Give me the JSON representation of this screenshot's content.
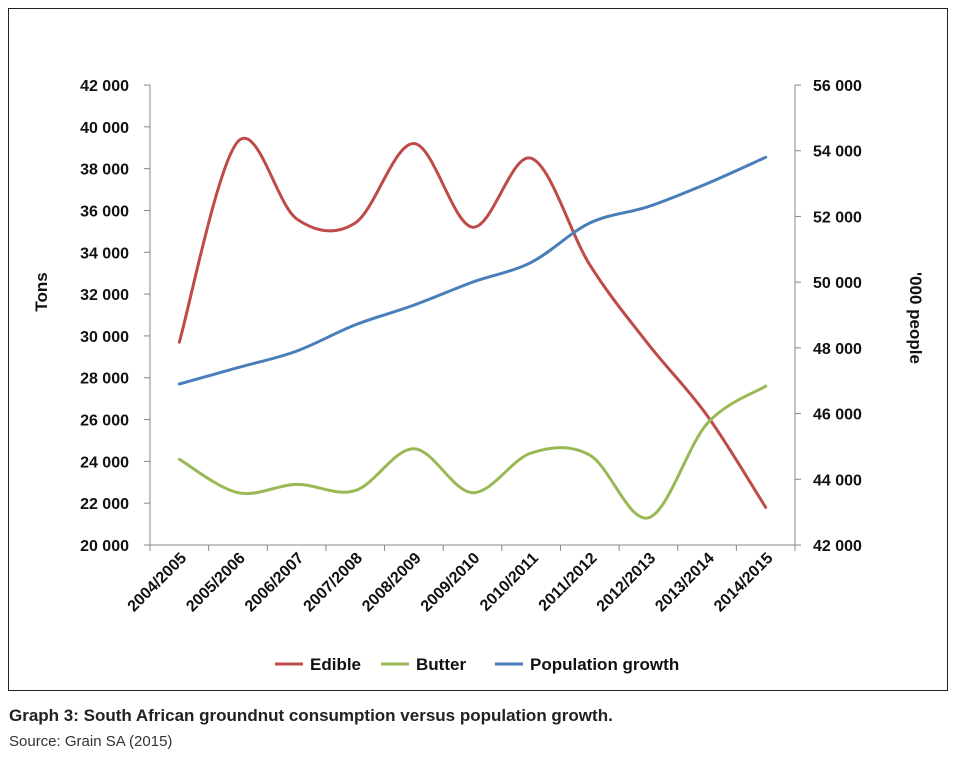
{
  "caption": "Graph 3: South African groundnut consumption versus population growth.",
  "source": "Source: Grain SA (2015)",
  "chart_data": {
    "type": "line",
    "categories": [
      "2004/2005",
      "2005/2006",
      "2006/2007",
      "2007/2008",
      "2008/2009",
      "2009/2010",
      "2010/2011",
      "2011/2012",
      "2012/2013",
      "2013/2014",
      "2014/2015"
    ],
    "ylabel": "Tons",
    "y2label": "'000 people",
    "ylim": [
      20000,
      42000
    ],
    "y2lim": [
      42000,
      56000
    ],
    "yticks": [
      "20 000",
      "22 000",
      "24 000",
      "26 000",
      "28 000",
      "30 000",
      "32 000",
      "34 000",
      "36 000",
      "38 000",
      "40 000",
      "42 000"
    ],
    "y2ticks": [
      "42 000",
      "44 000",
      "46 000",
      "48 000",
      "50 000",
      "52 000",
      "54 000",
      "56 000"
    ],
    "legend_position": "bottom",
    "grid": false,
    "series": [
      {
        "name": "Edible",
        "axis": "left",
        "color": "#be4b48",
        "values": [
          29700,
          39300,
          35600,
          35400,
          39200,
          35200,
          38500,
          33400,
          29600,
          26200,
          21800
        ]
      },
      {
        "name": "Butter",
        "axis": "left",
        "color": "#98b954",
        "values": [
          24100,
          22500,
          22900,
          22600,
          24600,
          22500,
          24400,
          24300,
          21300,
          25800,
          27600
        ]
      },
      {
        "name": "Population growth",
        "axis": "right",
        "color": "#4a7ebb",
        "values": [
          46900,
          47400,
          47900,
          48700,
          49300,
          50000,
          50600,
          51800,
          52300,
          53000,
          53800
        ]
      }
    ]
  }
}
